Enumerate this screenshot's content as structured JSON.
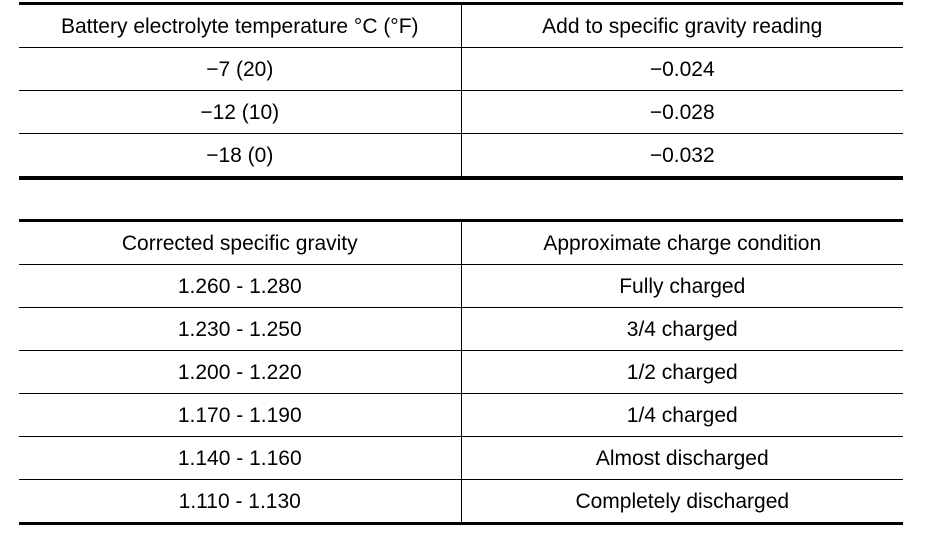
{
  "temperature_table": {
    "headers": [
      "Battery electrolyte temperature °C (°F)",
      "Add to specific gravity reading"
    ],
    "rows": [
      [
        "−7 (20)",
        "−0.024"
      ],
      [
        "−12 (10)",
        "−0.028"
      ],
      [
        "−18 (0)",
        "−0.032"
      ]
    ]
  },
  "charge_table": {
    "headers": [
      "Corrected specific gravity",
      "Approximate charge condition"
    ],
    "rows": [
      [
        "1.260 - 1.280",
        "Fully charged"
      ],
      [
        "1.230 - 1.250",
        "3/4 charged"
      ],
      [
        "1.200 - 1.220",
        "1/2 charged"
      ],
      [
        "1.170 - 1.190",
        "1/4 charged"
      ],
      [
        "1.140 - 1.160",
        "Almost discharged"
      ],
      [
        "1.110 - 1.130",
        "Completely discharged"
      ]
    ]
  }
}
